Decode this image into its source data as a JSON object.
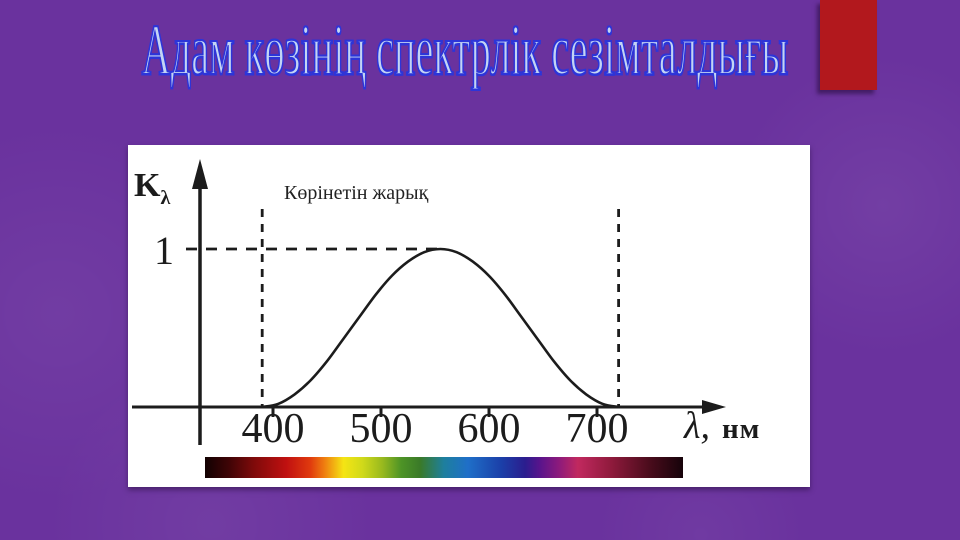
{
  "slide": {
    "title": "Адам көзінің спектрлік сезімталдығы",
    "colors": {
      "background": "#6A329E",
      "accent_rect": "#B2181D",
      "title_fill": "#C3D4F4",
      "title_outline": "#2D35D8",
      "panel": "#FFFFFF",
      "ink": "#1C1C1C"
    }
  },
  "chart_data": {
    "type": "line",
    "title": "Адам көзінің спектрлік сезімталдығы",
    "ylabel": "Kλ",
    "ylabel_main": "K",
    "ylabel_sub": "λ",
    "xlabel": "λ, нм",
    "xlabel_lambda": "λ,",
    "xlabel_unit": "нм",
    "annotation": "Көрінетін жарық",
    "y_reference_label": "1",
    "y_reference_value": 1,
    "x_ticks": [
      400,
      500,
      600,
      700
    ],
    "x_tick_labels": [
      "400",
      "500",
      "600",
      "700"
    ],
    "xlim": [
      310,
      815
    ],
    "ylim": [
      0,
      1.25
    ],
    "grid": false,
    "legend": false,
    "visible_band_nm": [
      390,
      720
    ],
    "peak": {
      "wavelength_nm": 555,
      "value": 1
    },
    "series": [
      {
        "name": "Kλ",
        "x": [
          390,
          405,
          420,
          435,
          450,
          465,
          480,
          495,
          510,
          525,
          540,
          555,
          570,
          585,
          600,
          615,
          630,
          645,
          660,
          675,
          690,
          705,
          720
        ],
        "y": [
          0,
          0.02,
          0.08,
          0.17,
          0.29,
          0.43,
          0.57,
          0.71,
          0.83,
          0.92,
          0.98,
          1,
          0.98,
          0.92,
          0.83,
          0.71,
          0.57,
          0.43,
          0.29,
          0.17,
          0.08,
          0.02,
          0
        ]
      }
    ],
    "spectrum_bar": {
      "stops": [
        {
          "offset": 0.0,
          "color": "#120102"
        },
        {
          "offset": 0.05,
          "color": "#3F0406"
        },
        {
          "offset": 0.1,
          "color": "#7C0A0A"
        },
        {
          "offset": 0.17,
          "color": "#C01010"
        },
        {
          "offset": 0.22,
          "color": "#E03A0E"
        },
        {
          "offset": 0.25,
          "color": "#EF7E10"
        },
        {
          "offset": 0.29,
          "color": "#F5E514"
        },
        {
          "offset": 0.33,
          "color": "#CFD91A"
        },
        {
          "offset": 0.37,
          "color": "#9ABA1E"
        },
        {
          "offset": 0.41,
          "color": "#4E9426"
        },
        {
          "offset": 0.45,
          "color": "#3A7A28"
        },
        {
          "offset": 0.5,
          "color": "#1E7F9E"
        },
        {
          "offset": 0.55,
          "color": "#1F6FC8"
        },
        {
          "offset": 0.62,
          "color": "#1B3FA8"
        },
        {
          "offset": 0.67,
          "color": "#2B1D8E"
        },
        {
          "offset": 0.7,
          "color": "#58148C"
        },
        {
          "offset": 0.74,
          "color": "#8C1A7C"
        },
        {
          "offset": 0.78,
          "color": "#C1295F"
        },
        {
          "offset": 0.85,
          "color": "#8F1A3C"
        },
        {
          "offset": 0.93,
          "color": "#4A0C1C"
        },
        {
          "offset": 1.0,
          "color": "#16030A"
        }
      ]
    }
  }
}
